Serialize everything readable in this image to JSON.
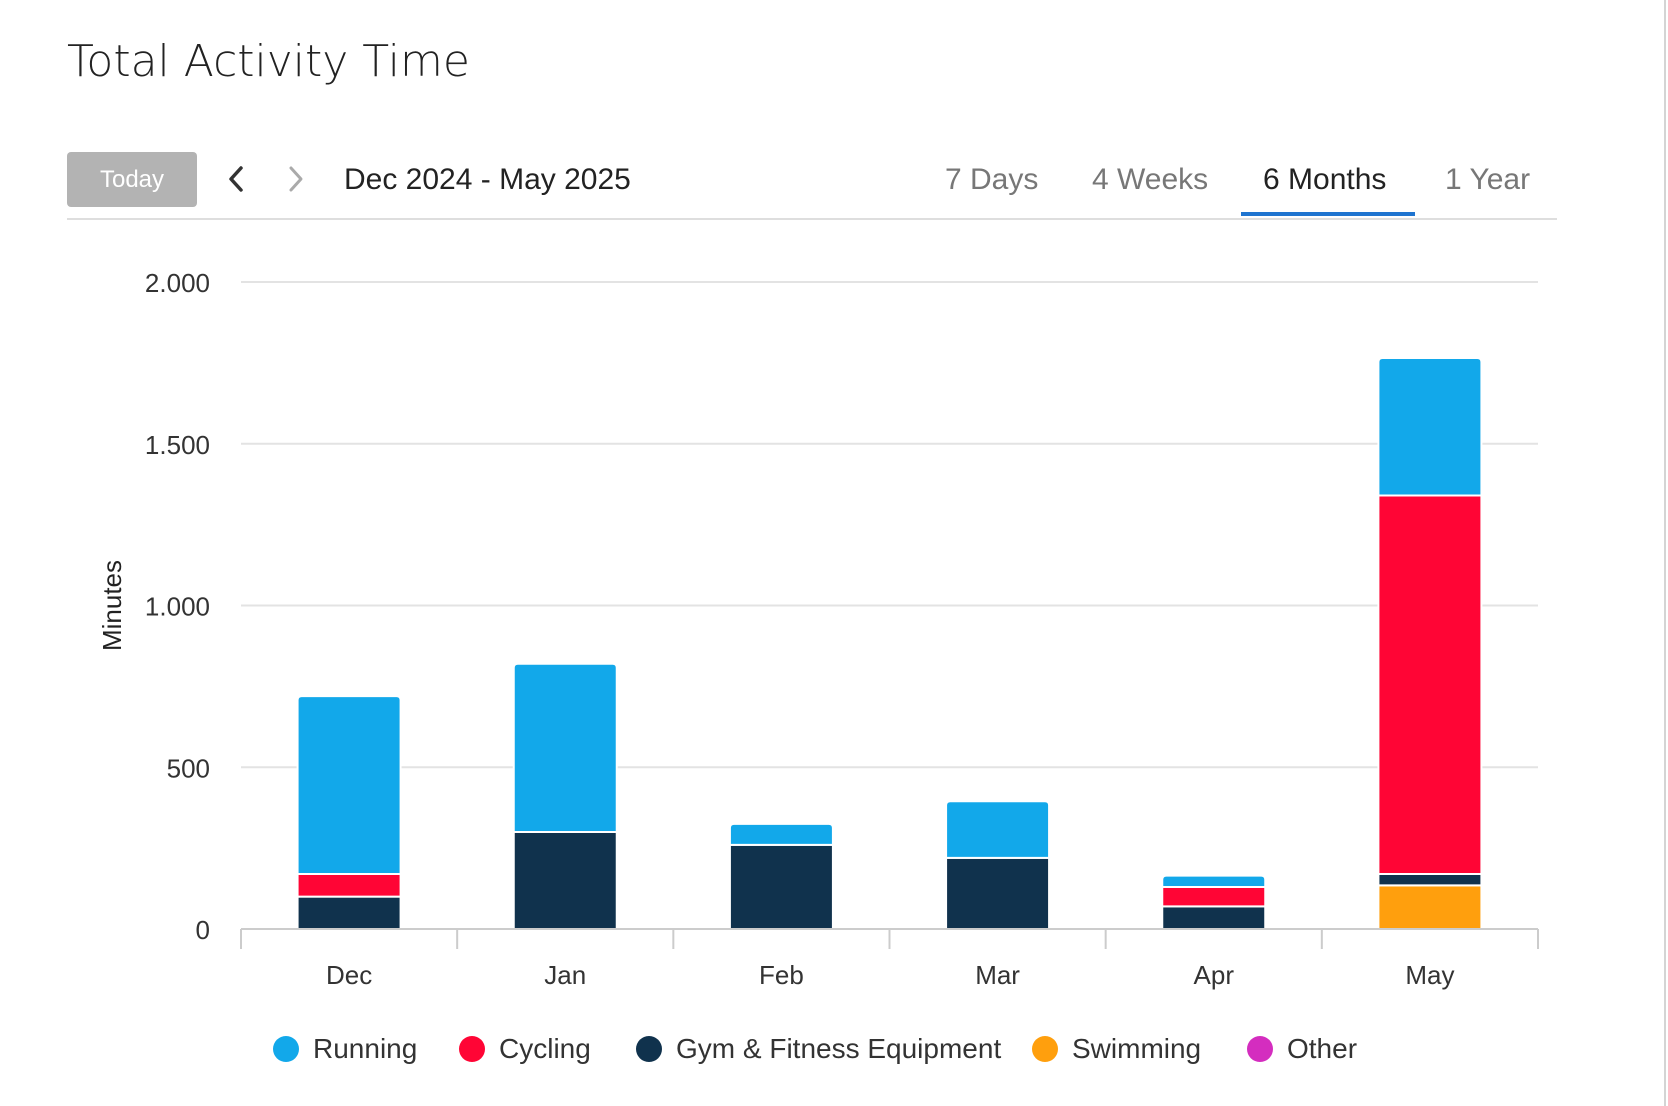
{
  "title": "Total Activity Time",
  "toolbar": {
    "today_label": "Today",
    "date_range": "Dec 2024 - May 2025",
    "tabs": [
      "7 Days",
      "4 Weeks",
      "6 Months",
      "1 Year"
    ],
    "active_tab": "6 Months"
  },
  "colors": {
    "Running": "#12a8ea",
    "Cycling": "#ff0535",
    "Gym & Fitness Equipment": "#10324d",
    "Swimming": "#ff9f0d",
    "Other": "#d42dbf",
    "accent": "#1e74d0"
  },
  "chart_data": {
    "type": "bar",
    "stacked": true,
    "categories": [
      "Dec",
      "Jan",
      "Feb",
      "Mar",
      "Apr",
      "May"
    ],
    "ylabel": "Minutes",
    "xlabel": "",
    "ylim": [
      0,
      2000
    ],
    "yticks": [
      0,
      500,
      1000,
      1500,
      2000
    ],
    "ytick_labels": [
      "0",
      "500",
      "1.000",
      "1.500",
      "2.000"
    ],
    "grid": true,
    "legend_position": "bottom",
    "series": [
      {
        "name": "Swimming",
        "values": [
          0,
          0,
          0,
          0,
          0,
          135
        ]
      },
      {
        "name": "Gym & Fitness Equipment",
        "values": [
          100,
          300,
          260,
          220,
          70,
          35
        ]
      },
      {
        "name": "Cycling",
        "values": [
          70,
          0,
          0,
          0,
          60,
          1170
        ]
      },
      {
        "name": "Running",
        "values": [
          550,
          520,
          65,
          175,
          35,
          425
        ]
      },
      {
        "name": "Other",
        "values": [
          0,
          0,
          0,
          0,
          0,
          0
        ]
      }
    ],
    "legend": [
      "Running",
      "Cycling",
      "Gym & Fitness Equipment",
      "Swimming",
      "Other"
    ]
  }
}
